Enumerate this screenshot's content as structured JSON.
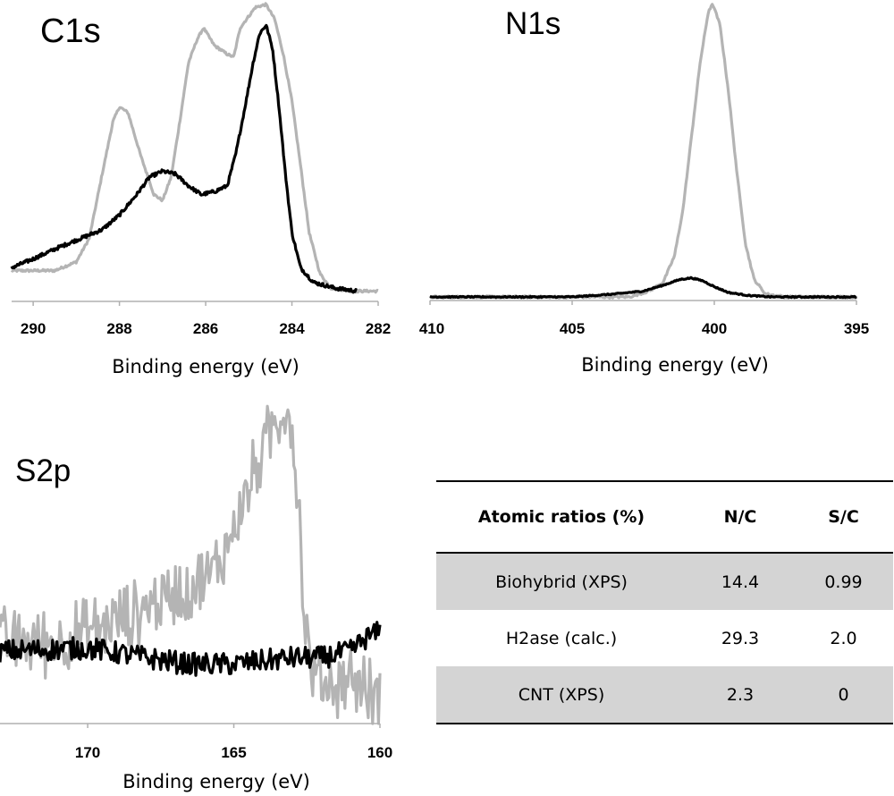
{
  "chart_data": [
    {
      "type": "line",
      "title": "C1s",
      "xlabel": "Binding energy (eV)",
      "ylabel": "",
      "xlim": [
        290.5,
        282
      ],
      "x_reversed": true,
      "xticks": [
        "290",
        "288",
        "286",
        "284",
        "282"
      ],
      "y_axis_shown": false,
      "grid": false,
      "series": [
        {
          "name": "gray",
          "color": "#b4b4b4",
          "points": [
            [
              290.5,
              0.09
            ],
            [
              289.5,
              0.09
            ],
            [
              289.0,
              0.12
            ],
            [
              288.7,
              0.2
            ],
            [
              288.4,
              0.42
            ],
            [
              288.15,
              0.6
            ],
            [
              288.0,
              0.65
            ],
            [
              287.8,
              0.63
            ],
            [
              287.5,
              0.48
            ],
            [
              287.2,
              0.35
            ],
            [
              287.0,
              0.33
            ],
            [
              286.8,
              0.41
            ],
            [
              286.6,
              0.6
            ],
            [
              286.4,
              0.8
            ],
            [
              286.2,
              0.88
            ],
            [
              286.05,
              0.92
            ],
            [
              285.8,
              0.86
            ],
            [
              285.5,
              0.83
            ],
            [
              285.35,
              0.82
            ],
            [
              285.2,
              0.92
            ],
            [
              285.0,
              0.96
            ],
            [
              284.85,
              0.99
            ],
            [
              284.6,
              1.0
            ],
            [
              284.4,
              0.95
            ],
            [
              284.2,
              0.83
            ],
            [
              284.0,
              0.67
            ],
            [
              283.8,
              0.45
            ],
            [
              283.6,
              0.22
            ],
            [
              283.35,
              0.08
            ],
            [
              283.1,
              0.03
            ],
            [
              282.6,
              0.02
            ],
            [
              282.0,
              0.02
            ]
          ]
        },
        {
          "name": "black",
          "color": "#000000",
          "points": [
            [
              290.5,
              0.1
            ],
            [
              290.0,
              0.13
            ],
            [
              289.4,
              0.17
            ],
            [
              288.9,
              0.2
            ],
            [
              288.4,
              0.23
            ],
            [
              288.0,
              0.28
            ],
            [
              287.6,
              0.35
            ],
            [
              287.3,
              0.41
            ],
            [
              287.0,
              0.43
            ],
            [
              286.7,
              0.42
            ],
            [
              286.4,
              0.38
            ],
            [
              286.1,
              0.35
            ],
            [
              285.8,
              0.36
            ],
            [
              285.5,
              0.38
            ],
            [
              285.3,
              0.49
            ],
            [
              285.1,
              0.64
            ],
            [
              284.9,
              0.8
            ],
            [
              284.75,
              0.9
            ],
            [
              284.6,
              0.93
            ],
            [
              284.45,
              0.85
            ],
            [
              284.3,
              0.65
            ],
            [
              284.15,
              0.42
            ],
            [
              284.0,
              0.22
            ],
            [
              283.8,
              0.1
            ],
            [
              283.5,
              0.05
            ],
            [
              283.0,
              0.03
            ],
            [
              282.5,
              0.02
            ]
          ]
        }
      ]
    },
    {
      "type": "line",
      "title": "N1s",
      "xlabel": "Binding energy (eV)",
      "ylabel": "",
      "xlim": [
        410,
        395
      ],
      "x_reversed": true,
      "xticks": [
        "410",
        "405",
        "400",
        "395"
      ],
      "y_axis_shown": false,
      "grid": false,
      "series": [
        {
          "name": "gray",
          "color": "#b4b4b4",
          "points": [
            [
              410,
              0.0
            ],
            [
              406,
              0.0
            ],
            [
              403,
              0.0
            ],
            [
              402.3,
              0.02
            ],
            [
              401.8,
              0.05
            ],
            [
              401.4,
              0.14
            ],
            [
              401.1,
              0.3
            ],
            [
              400.8,
              0.55
            ],
            [
              400.5,
              0.8
            ],
            [
              400.2,
              0.98
            ],
            [
              400.05,
              1.0
            ],
            [
              399.8,
              0.93
            ],
            [
              399.5,
              0.7
            ],
            [
              399.2,
              0.42
            ],
            [
              398.9,
              0.18
            ],
            [
              398.6,
              0.06
            ],
            [
              398.2,
              0.01
            ],
            [
              397.5,
              0.0
            ],
            [
              395,
              0.0
            ]
          ]
        },
        {
          "name": "black",
          "color": "#000000",
          "points": [
            [
              410,
              0.0
            ],
            [
              405,
              0.0
            ],
            [
              403.5,
              0.01
            ],
            [
              402.5,
              0.02
            ],
            [
              401.8,
              0.04
            ],
            [
              401.2,
              0.06
            ],
            [
              400.8,
              0.065
            ],
            [
              400.4,
              0.055
            ],
            [
              400.0,
              0.035
            ],
            [
              399.5,
              0.015
            ],
            [
              398.8,
              0.005
            ],
            [
              398.0,
              0.0
            ],
            [
              395,
              0.0
            ]
          ]
        }
      ]
    },
    {
      "type": "line",
      "title": "S2p",
      "xlabel": "Binding energy (eV)",
      "ylabel": "",
      "xlim": [
        173,
        160
      ],
      "x_reversed": true,
      "xticks": [
        "170",
        "165",
        "160"
      ],
      "y_axis_shown": false,
      "grid": false,
      "series": [
        {
          "name": "gray",
          "color": "#b4b4b4",
          "points": [
            [
              173,
              0.25
            ],
            [
              171,
              0.25
            ],
            [
              170,
              0.28
            ],
            [
              168.5,
              0.33
            ],
            [
              167.5,
              0.38
            ],
            [
              166.5,
              0.42
            ],
            [
              165.8,
              0.45
            ],
            [
              165.2,
              0.55
            ],
            [
              164.8,
              0.65
            ],
            [
              164.5,
              0.72
            ],
            [
              164.2,
              0.8
            ],
            [
              163.8,
              0.88
            ],
            [
              163.4,
              0.95
            ],
            [
              163.2,
              0.98
            ],
            [
              163.0,
              0.9
            ],
            [
              162.8,
              0.7
            ],
            [
              162.6,
              0.35
            ],
            [
              162.4,
              0.18
            ],
            [
              162.0,
              0.12
            ],
            [
              161.5,
              0.12
            ],
            [
              161.0,
              0.14
            ],
            [
              160.5,
              0.1
            ],
            [
              160,
              0.08
            ]
          ]
        },
        {
          "name": "black",
          "color": "#000000",
          "points": [
            [
              173,
              0.22
            ],
            [
              170,
              0.23
            ],
            [
              168,
              0.2
            ],
            [
              166.5,
              0.18
            ],
            [
              165,
              0.18
            ],
            [
              163,
              0.2
            ],
            [
              162,
              0.2
            ],
            [
              161,
              0.22
            ],
            [
              160.5,
              0.26
            ],
            [
              160,
              0.28
            ]
          ]
        }
      ]
    }
  ],
  "table": {
    "headers": [
      "Atomic ratios (%)",
      "N/C",
      "S/C"
    ],
    "rows": [
      {
        "label": "Biohybrid (XPS)",
        "nc": "14.4",
        "sc": "0.99"
      },
      {
        "label": "H2ase (calc.)",
        "nc": "29.3",
        "sc": "2.0"
      },
      {
        "label": "CNT (XPS)",
        "nc": "2.3",
        "sc": "0"
      }
    ],
    "shade_color": "#d4d4d4"
  }
}
